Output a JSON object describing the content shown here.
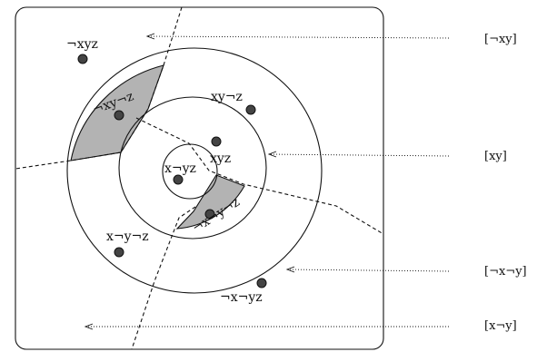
{
  "worlds": [
    {
      "id": "nx-y-z",
      "label": "¬xyz"
    },
    {
      "id": "nx-y-nz",
      "label": "¬xy¬z"
    },
    {
      "id": "x-y-nz",
      "label": "xy¬z"
    },
    {
      "id": "x-y-z",
      "label": "xyz"
    },
    {
      "id": "x-ny-z",
      "label": "x¬yz"
    },
    {
      "id": "nx-ny-nz",
      "label": "¬x¬y¬z"
    },
    {
      "id": "x-ny-nz",
      "label": "x¬y¬z"
    },
    {
      "id": "nx-ny-z",
      "label": "¬x¬yz"
    }
  ],
  "classes": [
    {
      "id": "nx-y",
      "label": "[¬xy]"
    },
    {
      "id": "x-y",
      "label": "[xy]"
    },
    {
      "id": "nx-ny",
      "label": "[¬x¬y]"
    },
    {
      "id": "x-ny",
      "label": "[x¬y]"
    }
  ]
}
